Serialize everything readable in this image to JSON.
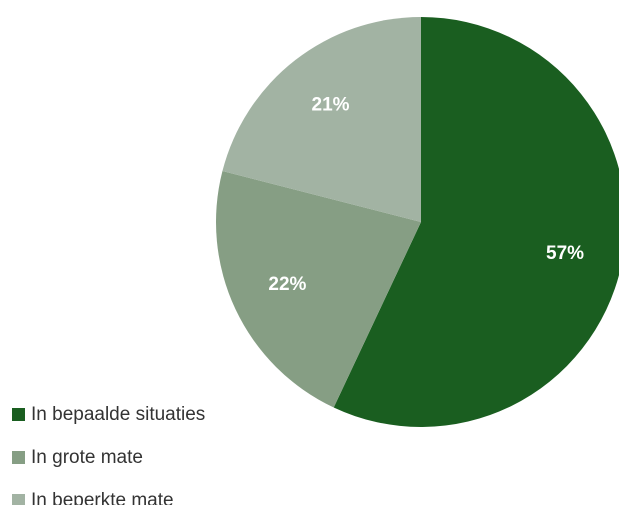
{
  "chart_data": {
    "type": "pie",
    "title": "",
    "slices": [
      {
        "label": "In bepaalde situaties",
        "value": 57,
        "display": "57%",
        "color": "#1a5e20"
      },
      {
        "label": "In grote mate",
        "value": 22,
        "display": "22%",
        "color": "#869e84"
      },
      {
        "label": "In beperkte mate",
        "value": 21,
        "display": "21%",
        "color": "#a2b3a3"
      }
    ],
    "legend_position": "bottom-left"
  }
}
